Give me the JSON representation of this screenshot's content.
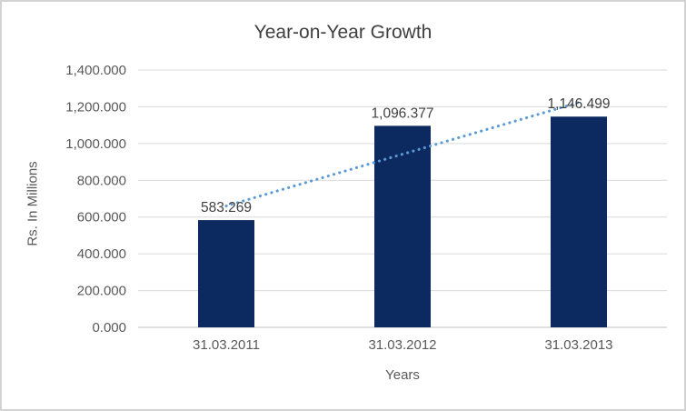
{
  "chart_data": {
    "type": "bar",
    "title": "Year-on-Year Growth",
    "xlabel": "Years",
    "ylabel": "Rs. In Millions",
    "categories": [
      "31.03.2011",
      "31.03.2012",
      "31.03.2013"
    ],
    "values": [
      583.269,
      1096.377,
      1146.499
    ],
    "value_labels": [
      "583.269",
      "1,096.377",
      "1,146.499"
    ],
    "ylim": [
      0,
      1400
    ],
    "yticks": [
      0,
      200,
      400,
      600,
      800,
      1000,
      1200,
      1400
    ],
    "ytick_labels": [
      "0.000",
      "200.000",
      "400.000",
      "600.000",
      "800.000",
      "1,000.000",
      "1,200.000",
      "1,400.000"
    ],
    "grid": true,
    "legend": "none",
    "trendline": {
      "type": "linear",
      "style": "dotted",
      "color": "#5b9bd5"
    },
    "colors": {
      "bar": "#0c2a60",
      "gridline": "#d9d9d9",
      "axis_line": "#bfbfbf",
      "tick_text": "#595959",
      "category_text": "#595959",
      "title_text": "#3f3f3f",
      "data_label_text": "#404040",
      "frame_border": "#d3d3d3",
      "background": "#ffffff"
    }
  }
}
